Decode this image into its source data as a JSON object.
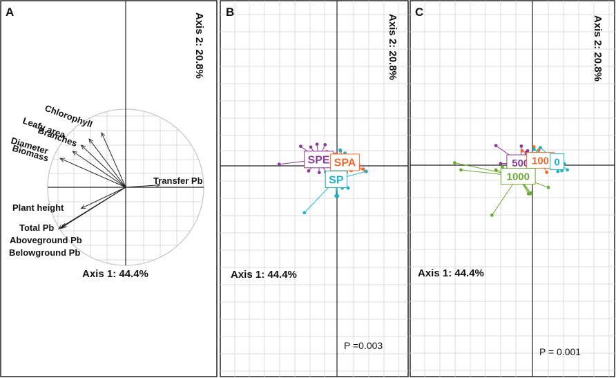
{
  "chart_data": [
    {
      "type": "scatter",
      "subtype": "pca-biplot-loadings",
      "panel_label": "A",
      "xlabel": "Axis 1: 44.4%",
      "ylabel": "Axis 2: 20.8%",
      "variables": [
        {
          "name": "Chlorophyll",
          "x": -0.31,
          "y": 0.7
        },
        {
          "name": "Leafy area",
          "x": -0.47,
          "y": 0.62
        },
        {
          "name": "Branches",
          "x": -0.57,
          "y": 0.54
        },
        {
          "name": "Diameter",
          "x": -0.68,
          "y": 0.46
        },
        {
          "name": "Biomass",
          "x": -0.84,
          "y": 0.37
        },
        {
          "name": "Transfer Pb",
          "x": 0.44,
          "y": 0.03
        },
        {
          "name": "Plant height",
          "x": -0.57,
          "y": -0.27
        },
        {
          "name": "Total Pb",
          "x": -0.81,
          "y": -0.51
        },
        {
          "name": "Aboveground Pb",
          "x": -0.83,
          "y": -0.52
        },
        {
          "name": "Belowground Pb",
          "x": -0.86,
          "y": -0.53
        }
      ]
    },
    {
      "type": "scatter",
      "subtype": "pca-scores-by-group",
      "panel_label": "B",
      "xlabel": "Axis 1: 44.4%",
      "ylabel": "Axis 2: 20.8%",
      "annotation": "P =0.003",
      "groups": [
        {
          "name": "SPE",
          "color": "#8B3A96",
          "centroid": [
            -1.15,
            0.4
          ],
          "points": [
            [
              -2.29,
              1.23
            ],
            [
              -3.64,
              0.1
            ],
            [
              -1.26,
              1.36
            ],
            [
              -0.75,
              1.33
            ],
            [
              -1.79,
              -0.32
            ],
            [
              -1.12,
              -0.42
            ],
            [
              -0.7,
              -0.4
            ],
            [
              -1.39,
              0.72
            ],
            [
              -1.65,
              1.18
            ]
          ]
        },
        {
          "name": "SPA",
          "color": "#F06A2C",
          "centroid": [
            0.5,
            0.22
          ],
          "points": [
            [
              -0.1,
              0.74
            ],
            [
              -0.65,
              0.9
            ],
            [
              0.22,
              0.95
            ],
            [
              1.8,
              -0.35
            ],
            [
              1.65,
              -0.2
            ],
            [
              0.6,
              -0.4
            ],
            [
              -0.23,
              0.55
            ],
            [
              1.4,
              0.0
            ],
            [
              0.9,
              -0.3
            ],
            [
              0.2,
              -0.35
            ]
          ]
        },
        {
          "name": "SP",
          "color": "#1BB3C6",
          "centroid": [
            -0.05,
            -0.85
          ],
          "points": [
            [
              -2.05,
              -2.95
            ],
            [
              -0.06,
              -1.9
            ],
            [
              0.04,
              -1.9
            ],
            [
              0.7,
              -1.4
            ],
            [
              0.33,
              -1.4
            ],
            [
              1.85,
              -0.35
            ],
            [
              0.5,
              0.8
            ],
            [
              0.2,
              1.0
            ],
            [
              0.4,
              0.1
            ],
            [
              -0.15,
              -0.5
            ]
          ]
        }
      ]
    },
    {
      "type": "scatter",
      "subtype": "pca-scores-by-group",
      "panel_label": "C",
      "xlabel": "Axis 1: 44.4%",
      "ylabel": "Axis 2: 20.8%",
      "annotation": "P = 0.001",
      "groups": [
        {
          "name": "500",
          "color": "#8B3A96",
          "centroid": [
            -0.75,
            0.15
          ],
          "points": [
            [
              -2.3,
              1.23
            ],
            [
              -2.0,
              0.1
            ],
            [
              -0.7,
              1.2
            ],
            [
              -0.4,
              0.8
            ],
            [
              -0.9,
              -0.4
            ],
            [
              0.1,
              0.4
            ],
            [
              -1.4,
              0.2
            ],
            [
              -0.3,
              0.9
            ]
          ]
        },
        {
          "name": "100",
          "color": "#F06A2C",
          "centroid": [
            0.5,
            0.3
          ],
          "points": [
            [
              0.1,
              1.15
            ],
            [
              -0.65,
              0.9
            ],
            [
              0.4,
              0.95
            ],
            [
              1.2,
              0.5
            ],
            [
              1.0,
              0.1
            ],
            [
              0.9,
              -0.45
            ],
            [
              1.45,
              0.1
            ],
            [
              0.3,
              0.6
            ]
          ]
        },
        {
          "name": "0",
          "color": "#1BB3C6",
          "centroid": [
            1.55,
            0.22
          ],
          "points": [
            [
              0.5,
              1.1
            ],
            [
              0.1,
              1.0
            ],
            [
              1.6,
              -0.4
            ],
            [
              1.85,
              -0.35
            ],
            [
              1.9,
              -0.1
            ],
            [
              1.7,
              0.0
            ],
            [
              1.3,
              -0.1
            ],
            [
              2.2,
              -0.3
            ],
            [
              2.0,
              0.1
            ]
          ]
        },
        {
          "name": "1000",
          "color": "#6BAA32",
          "centroid": [
            -0.9,
            -0.7
          ],
          "points": [
            [
              -4.9,
              0.15
            ],
            [
              -4.5,
              -0.3
            ],
            [
              -2.55,
              -3.15
            ],
            [
              -0.25,
              -1.8
            ],
            [
              -0.15,
              -1.8
            ],
            [
              -0.1,
              -1.75
            ],
            [
              1.0,
              -1.4
            ],
            [
              -2.3,
              -0.3
            ],
            [
              -0.9,
              -0.4
            ],
            [
              -0.5,
              -0.6
            ],
            [
              -1.9,
              -0.1
            ]
          ]
        }
      ]
    }
  ]
}
